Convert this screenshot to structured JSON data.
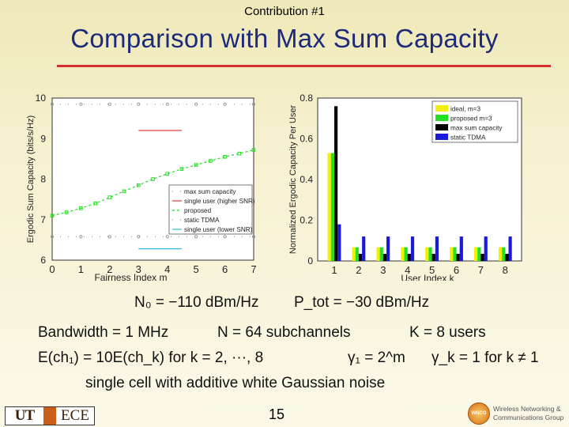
{
  "header": {
    "section": "Contribution #1",
    "title": "Comparison with Max Sum Capacity"
  },
  "equations": {
    "line1_a": "N₀ = −110 dBm/Hz",
    "line1_b": "P_tot = −30 dBm/Hz",
    "line2_a": "Bandwidth = 1 MHz",
    "line2_b": "N = 64 subchannels",
    "line2_c": "K = 8 users",
    "line3_a": "E(ch₁) = 10E(ch_k) for k = 2, ···, 8",
    "line3_b": "γ₁ = 2^m",
    "line3_c": "γ_k = 1 for k ≠ 1",
    "line4": "single cell with additive white Gaussian noise"
  },
  "footer": {
    "page_number": "15",
    "ut_logo_text": "UT",
    "ece_logo_text": "ECE",
    "wncg_seal_text": "WNCG",
    "wncg_line1": "Wireless Networking &",
    "wncg_line2": "Communications Group"
  },
  "colors": {
    "title": "#1c2a7a",
    "rule": "#d63030",
    "ideal": "#f0f000",
    "proposed": "#22e022",
    "max_sum": "#000000",
    "static_tdma": "#1a1adc",
    "single_user_higher": "#e04040",
    "single_user_lower": "#30c0d8"
  },
  "chart_data": [
    {
      "type": "line",
      "xlabel": "Fairness Index m",
      "ylabel": "Ergodic Sum Capacity (bits/s/Hz)",
      "xlim": [
        0,
        7
      ],
      "ylim": [
        6,
        10
      ],
      "xticks": [
        "0",
        "1",
        "2",
        "3",
        "4",
        "5",
        "6",
        "7"
      ],
      "yticks": [
        "6",
        "7",
        "8",
        "9",
        "10"
      ],
      "legend_position": "lower-right",
      "series": [
        {
          "name": "max sum capacity",
          "x": [
            0,
            1,
            2,
            3,
            4,
            5,
            6,
            7
          ],
          "y": [
            9.85,
            9.85,
            9.85,
            9.85,
            9.85,
            9.85,
            9.85,
            9.85
          ]
        },
        {
          "name": "single user (higher SNR)",
          "x": [
            3,
            4.5
          ],
          "y": [
            9.2,
            9.2
          ]
        },
        {
          "name": "proposed",
          "x": [
            0,
            0.5,
            1,
            1.5,
            2,
            2.5,
            3,
            3.5,
            4,
            4.5,
            5,
            5.5,
            6,
            6.5,
            7
          ],
          "y": [
            7.1,
            7.18,
            7.28,
            7.4,
            7.55,
            7.7,
            7.85,
            8.0,
            8.13,
            8.25,
            8.35,
            8.45,
            8.55,
            8.63,
            8.72
          ]
        },
        {
          "name": "static TDMA",
          "x": [
            0,
            1,
            2,
            3,
            4,
            5,
            6,
            7
          ],
          "y": [
            6.58,
            6.58,
            6.58,
            6.58,
            6.58,
            6.58,
            6.58,
            6.58
          ]
        },
        {
          "name": "single user (lower SNR)",
          "x": [
            3,
            4.5
          ],
          "y": [
            6.28,
            6.28
          ]
        }
      ]
    },
    {
      "type": "bar",
      "xlabel": "User Index k",
      "ylabel": "Normalized Ergodic Capacity Per User",
      "ylim": [
        0,
        0.8
      ],
      "yticks": [
        "0",
        "0.2",
        "0.4",
        "0.6",
        "0.8"
      ],
      "categories": [
        "1",
        "2",
        "3",
        "4",
        "5",
        "6",
        "7",
        "8"
      ],
      "legend_position": "top-right",
      "series": [
        {
          "name": "ideal, m=3",
          "values": [
            0.53,
            0.067,
            0.067,
            0.067,
            0.067,
            0.067,
            0.067,
            0.067
          ]
        },
        {
          "name": "proposed m=3",
          "values": [
            0.53,
            0.067,
            0.067,
            0.067,
            0.067,
            0.067,
            0.067,
            0.067
          ]
        },
        {
          "name": "max sum capacity",
          "values": [
            0.76,
            0.035,
            0.035,
            0.035,
            0.035,
            0.035,
            0.035,
            0.035
          ]
        },
        {
          "name": "static TDMA",
          "values": [
            0.18,
            0.12,
            0.12,
            0.12,
            0.12,
            0.12,
            0.12,
            0.12
          ]
        }
      ]
    }
  ]
}
